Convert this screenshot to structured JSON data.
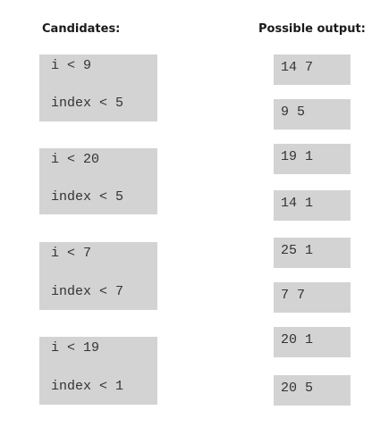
{
  "headings": {
    "candidates": "Candidates:",
    "possible_output": "Possible output:"
  },
  "candidates": [
    {
      "line1": "i < 9",
      "line2": "index < 5"
    },
    {
      "line1": "i < 20",
      "line2": "index < 5"
    },
    {
      "line1": "i < 7",
      "line2": "index < 7"
    },
    {
      "line1": "i < 19",
      "line2": "index < 1"
    }
  ],
  "outputs": [
    "14 7",
    "9 5",
    "19 1",
    "14 1",
    "25 1",
    "7 7",
    "20 1",
    "20 5"
  ]
}
